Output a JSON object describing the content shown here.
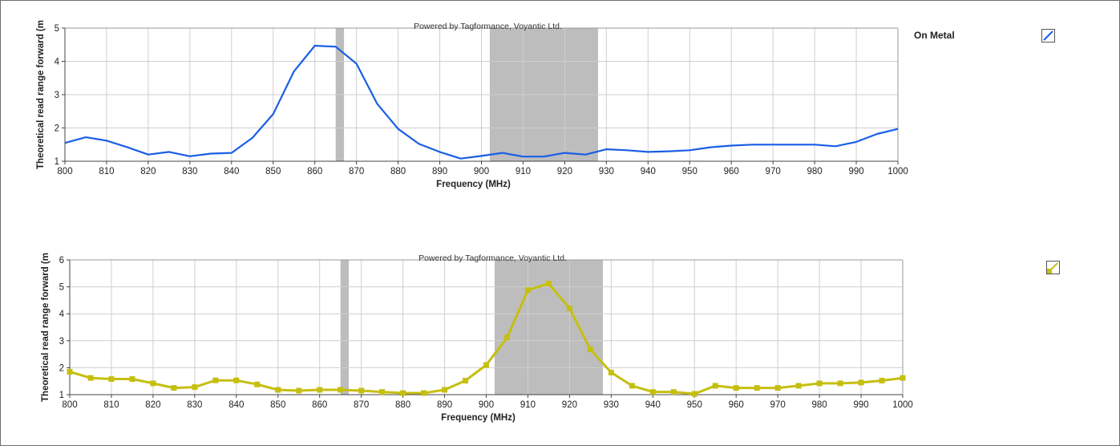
{
  "chart_data": [
    {
      "type": "line",
      "watermark": "Powered by Tagformance, Voyantic Ltd.",
      "xlabel": "Frequency (MHz)",
      "ylabel": "Theoretical read range forward (m",
      "xlim": [
        800,
        1000
      ],
      "ylim": [
        1,
        5
      ],
      "xticks": [
        "800",
        "810",
        "820",
        "830",
        "840",
        "850",
        "860",
        "870",
        "880",
        "890",
        "900",
        "910",
        "920",
        "930",
        "940",
        "950",
        "960",
        "970",
        "980",
        "990",
        "1000"
      ],
      "yticks": [
        "1",
        "2",
        "3",
        "4",
        "5"
      ],
      "grid": true,
      "shaded_bands": [
        [
          865,
          867
        ],
        [
          902,
          928
        ]
      ],
      "legend_placement": "top-right",
      "series": [
        {
          "name": "On Metal",
          "color": "#1a5ee6",
          "markers": false,
          "x": [
            800,
            805,
            810,
            815,
            820,
            825,
            830,
            835,
            840,
            845,
            850,
            855,
            860,
            865,
            870,
            875,
            880,
            885,
            890,
            895,
            900,
            905,
            910,
            915,
            920,
            925,
            930,
            935,
            940,
            945,
            950,
            955,
            960,
            965,
            970,
            975,
            980,
            985,
            990,
            995,
            1000
          ],
          "y": [
            1.55,
            1.72,
            1.62,
            1.42,
            1.2,
            1.28,
            1.15,
            1.23,
            1.25,
            1.7,
            2.42,
            3.7,
            4.47,
            4.44,
            3.93,
            2.72,
            1.97,
            1.52,
            1.28,
            1.08,
            1.16,
            1.25,
            1.14,
            1.14,
            1.25,
            1.2,
            1.36,
            1.33,
            1.28,
            1.3,
            1.33,
            1.42,
            1.47,
            1.5,
            1.5,
            1.5,
            1.5,
            1.45,
            1.58,
            1.82,
            1.97
          ]
        }
      ]
    },
    {
      "type": "line",
      "watermark": "Powered by Tagformance, Voyantic Ltd.",
      "xlabel": "Frequency (MHz)",
      "ylabel": "Theoretical read range forward (m",
      "xlim": [
        800,
        1000
      ],
      "ylim": [
        1,
        6
      ],
      "xticks": [
        "800",
        "810",
        "820",
        "830",
        "840",
        "850",
        "860",
        "870",
        "880",
        "890",
        "900",
        "910",
        "920",
        "930",
        "940",
        "950",
        "960",
        "970",
        "980",
        "990",
        "1000"
      ],
      "yticks": [
        "1",
        "2",
        "3",
        "4",
        "5",
        "6"
      ],
      "grid": true,
      "shaded_bands": [
        [
          865,
          867
        ],
        [
          902,
          928
        ]
      ],
      "legend_placement": "top-right",
      "series": [
        {
          "color": "#c5bf10",
          "markers": true,
          "x": [
            800,
            805,
            810,
            815,
            820,
            825,
            830,
            835,
            840,
            845,
            850,
            855,
            860,
            865,
            870,
            875,
            880,
            885,
            890,
            895,
            900,
            905,
            910,
            915,
            920,
            925,
            930,
            935,
            940,
            945,
            950,
            955,
            960,
            965,
            970,
            975,
            980,
            985,
            990,
            995,
            1000
          ],
          "y": [
            1.85,
            1.62,
            1.58,
            1.58,
            1.42,
            1.25,
            1.28,
            1.53,
            1.53,
            1.38,
            1.18,
            1.15,
            1.18,
            1.18,
            1.15,
            1.1,
            1.06,
            1.06,
            1.18,
            1.52,
            2.1,
            3.12,
            4.88,
            5.12,
            4.2,
            2.68,
            1.82,
            1.33,
            1.1,
            1.1,
            1.03,
            1.33,
            1.25,
            1.25,
            1.25,
            1.33,
            1.42,
            1.42,
            1.45,
            1.52,
            1.62
          ]
        }
      ]
    }
  ]
}
